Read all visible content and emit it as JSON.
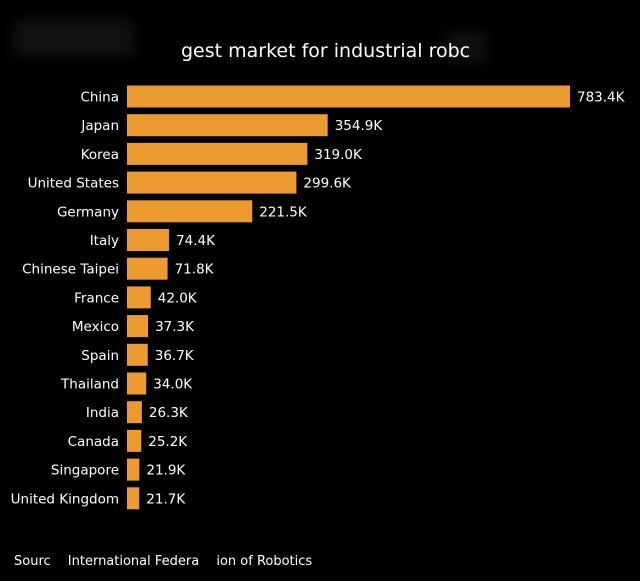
{
  "header": {
    "title": "gest market for industrial robc"
  },
  "footer": {
    "source": "Sourc  International Federa  ion of Robotics"
  },
  "colors": {
    "bar": "#EB9B30",
    "background": "#000000",
    "text": "#FFFFFF"
  },
  "chart_data": {
    "type": "bar",
    "orientation": "horizontal",
    "title": "gest market for industrial robc",
    "xlabel": "",
    "ylabel": "",
    "xlim": [
      0,
      783.4
    ],
    "grid": false,
    "categories": [
      "China",
      "Japan",
      "Korea",
      "United States",
      "Germany",
      "Italy",
      "Chinese Taipei",
      "France",
      "Mexico",
      "Spain",
      "Thailand",
      "India",
      "Canada",
      "Singapore",
      "United Kingdom"
    ],
    "values": [
      783.4,
      354.9,
      319.0,
      299.6,
      221.5,
      74.4,
      71.8,
      42.0,
      37.3,
      36.7,
      34.0,
      26.3,
      25.2,
      21.9,
      21.7
    ],
    "value_labels": [
      "783.4K",
      "354.9K",
      "319.0K",
      "299.6K",
      "221.5K",
      "74.4K",
      "71.8K",
      "42.0K",
      "37.3K",
      "36.7K",
      "34.0K",
      "26.3K",
      "25.2K",
      "21.9K",
      "21.7K"
    ]
  }
}
